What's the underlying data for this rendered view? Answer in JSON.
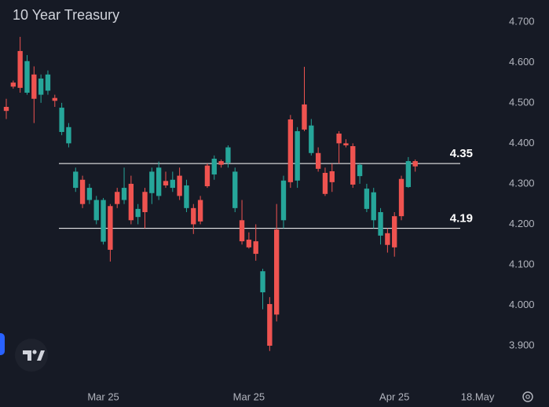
{
  "chart_data": {
    "type": "candlestick",
    "title": "10 Year Treasury",
    "categories": [
      null,
      null,
      null,
      null,
      null,
      null,
      null,
      null,
      null,
      null,
      null,
      null,
      null,
      null,
      "Mar 25",
      null,
      null,
      null,
      null,
      null,
      null,
      null,
      null,
      null,
      null,
      null,
      null,
      null,
      null,
      null,
      null,
      null,
      null,
      null,
      null,
      "Mar 25",
      null,
      null,
      null,
      null,
      null,
      null,
      null,
      null,
      null,
      null,
      null,
      null,
      null,
      null,
      null,
      null,
      null,
      null,
      null,
      null,
      "Apr 25",
      null,
      null,
      null,
      null,
      null,
      null,
      null,
      null,
      null,
      null,
      null,
      "18.May",
      null,
      null,
      null
    ],
    "open": [
      4.49,
      4.55,
      4.628,
      4.525,
      4.57,
      4.52,
      4.53,
      4.512,
      4.428,
      4.4,
      4.29,
      4.31,
      4.26,
      4.21,
      4.157,
      4.245,
      4.28,
      4.26,
      4.3,
      4.218,
      4.28,
      4.277,
      4.27,
      4.307,
      4.29,
      4.32,
      4.24,
      4.24,
      4.26,
      4.345,
      4.323,
      4.356,
      4.352,
      4.24,
      4.21,
      4.162,
      4.158,
      4.032,
      4.003,
      4.187,
      4.21,
      4.459,
      4.308,
      4.496,
      4.376,
      4.376,
      4.327,
      4.331,
      4.424,
      4.4,
      4.393,
      4.319,
      4.238,
      4.21,
      4.172,
      4.178,
      4.22,
      4.312,
      4.292,
      4.356,
      null,
      null,
      null,
      null,
      null,
      null,
      null,
      null,
      null,
      null,
      null,
      null
    ],
    "high": [
      4.51,
      4.555,
      4.663,
      4.618,
      4.59,
      4.57,
      4.58,
      4.52,
      4.5,
      4.45,
      4.34,
      4.32,
      4.3,
      4.27,
      4.265,
      4.25,
      4.29,
      4.34,
      4.32,
      4.25,
      4.29,
      4.34,
      4.355,
      4.33,
      4.33,
      4.34,
      4.31,
      4.25,
      4.27,
      4.35,
      4.37,
      4.36,
      4.395,
      4.34,
      4.26,
      4.18,
      4.2,
      4.09,
      4.02,
      4.25,
      4.32,
      4.47,
      4.44,
      4.589,
      4.46,
      4.39,
      4.34,
      4.35,
      4.43,
      4.41,
      4.4,
      4.35,
      4.3,
      4.29,
      4.24,
      4.19,
      4.23,
      4.32,
      4.366,
      4.36,
      null,
      null,
      null,
      null,
      null,
      null,
      null,
      null,
      null,
      null,
      null,
      null
    ],
    "low": [
      4.46,
      4.535,
      4.525,
      4.52,
      4.45,
      4.5,
      4.52,
      4.49,
      4.42,
      4.39,
      4.28,
      4.24,
      4.25,
      4.2,
      4.15,
      4.108,
      4.24,
      4.25,
      4.2,
      4.2,
      4.19,
      4.25,
      4.26,
      4.29,
      4.28,
      4.26,
      4.23,
      4.176,
      4.2,
      4.29,
      4.31,
      4.34,
      4.34,
      4.23,
      4.15,
      4.14,
      4.11,
      3.99,
      3.887,
      3.96,
      4.19,
      4.29,
      4.29,
      4.43,
      4.37,
      4.33,
      4.27,
      4.28,
      4.35,
      4.39,
      4.29,
      4.3,
      4.23,
      4.19,
      4.15,
      4.13,
      4.12,
      4.21,
      4.29,
      4.33,
      null,
      null,
      null,
      null,
      null,
      null,
      null,
      null,
      null,
      null,
      null,
      null
    ],
    "close": [
      4.48,
      4.54,
      4.537,
      4.603,
      4.51,
      4.56,
      4.57,
      4.505,
      4.488,
      4.44,
      4.33,
      4.25,
      4.29,
      4.26,
      4.26,
      4.137,
      4.25,
      4.29,
      4.21,
      4.238,
      4.23,
      4.33,
      4.34,
      4.296,
      4.31,
      4.27,
      4.296,
      4.2,
      4.207,
      4.294,
      4.362,
      4.347,
      4.39,
      4.33,
      4.158,
      4.143,
      4.127,
      4.084,
      3.9,
      3.977,
      4.308,
      4.304,
      4.43,
      4.434,
      4.444,
      4.337,
      4.275,
      4.304,
      4.4,
      4.395,
      4.298,
      4.347,
      4.288,
      4.279,
      4.23,
      4.149,
      4.143,
      4.22,
      4.356,
      4.343,
      null,
      null,
      null,
      null,
      null,
      null,
      null,
      null,
      null,
      null,
      null,
      null
    ],
    "up_color": "#26a69a",
    "down_color": "#ef5350",
    "ylim": [
      3.803,
      4.754
    ],
    "yticks": [
      {
        "value": 3.9,
        "label": "3.900"
      },
      {
        "value": 4.0,
        "label": "4.000"
      },
      {
        "value": 4.1,
        "label": "4.100"
      },
      {
        "value": 4.2,
        "label": "4.200"
      },
      {
        "value": 4.3,
        "label": "4.300"
      },
      {
        "value": 4.4,
        "label": "4.400"
      },
      {
        "value": 4.5,
        "label": "4.500"
      },
      {
        "value": 4.6,
        "label": "4.600"
      },
      {
        "value": 4.7,
        "label": "4.700"
      }
    ],
    "hlines": [
      4.35,
      4.19
    ]
  }
}
